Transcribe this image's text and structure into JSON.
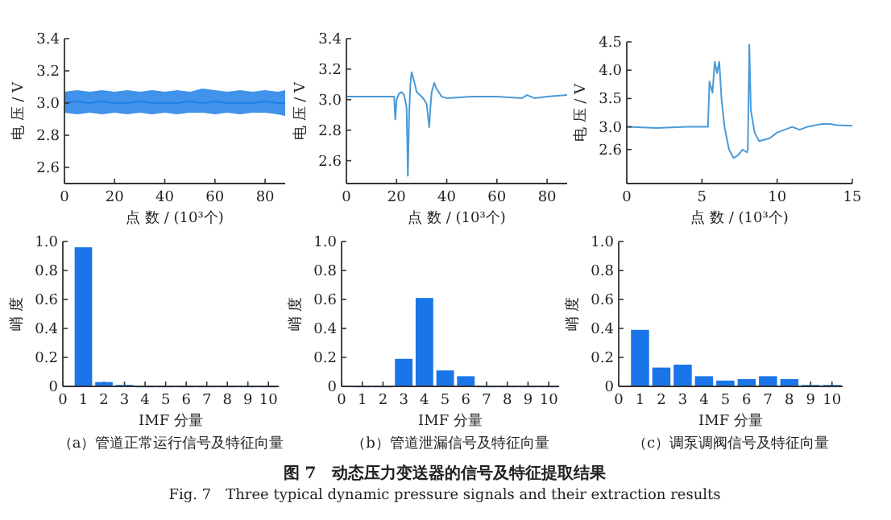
{
  "chart_data": [
    {
      "type": "line",
      "xlabel": "点 数 / (10³个)",
      "ylabel": "电 压 / V",
      "x": [
        0,
        5,
        10,
        15,
        20,
        25,
        30,
        35,
        40,
        45,
        50,
        55,
        60,
        65,
        70,
        75,
        80,
        85,
        88
      ],
      "xlim": [
        0,
        88
      ],
      "xticks": [
        0,
        20,
        40,
        60,
        80
      ],
      "ylim": [
        2.5,
        3.4
      ],
      "yticks": [
        2.6,
        2.8,
        {
          "value": 3,
          "label": "3.0"
        },
        3.2,
        3.4
      ],
      "series": [
        {
          "color": "#1e7fe6",
          "values": [
            3.0,
            3.01,
            3.0,
            3.01,
            3.0,
            3.0,
            3.01,
            3.0,
            3.0,
            3.0,
            3.01,
            3.0,
            3.01,
            3.0,
            3.0,
            3.0,
            3.01,
            3.0,
            3.0
          ],
          "lower": [
            2.94,
            2.93,
            2.94,
            2.93,
            2.94,
            2.93,
            2.94,
            2.93,
            2.94,
            2.93,
            2.94,
            2.94,
            2.93,
            2.94,
            2.93,
            2.94,
            2.94,
            2.93,
            2.92
          ],
          "upper": [
            3.07,
            3.08,
            3.07,
            3.08,
            3.07,
            3.08,
            3.07,
            3.08,
            3.07,
            3.08,
            3.07,
            3.09,
            3.08,
            3.07,
            3.08,
            3.07,
            3.08,
            3.07,
            3.08
          ]
        }
      ]
    },
    {
      "type": "line",
      "xlabel": "点 数 / (10³个)",
      "ylabel": "电 压 / V",
      "x": [
        0,
        10,
        19,
        19.5,
        20,
        21,
        22,
        23,
        24,
        24.5,
        25,
        25.5,
        26,
        27,
        28,
        30,
        31,
        32,
        33,
        33.5,
        34,
        35,
        36,
        38,
        40,
        50,
        60,
        70,
        72,
        75,
        80,
        88
      ],
      "xlim": [
        0,
        88
      ],
      "xticks": [
        0,
        20,
        40,
        60,
        80
      ],
      "ylim": [
        2.45,
        3.4
      ],
      "yticks": [
        2.6,
        2.8,
        {
          "value": 3,
          "label": "3.0"
        },
        3.2,
        3.4
      ],
      "series": [
        {
          "color": "#4a9ad8",
          "values": [
            3.02,
            3.02,
            3.02,
            2.87,
            3.0,
            3.04,
            3.05,
            3.03,
            2.95,
            2.5,
            2.9,
            3.1,
            3.18,
            3.12,
            3.05,
            3.02,
            3.0,
            2.97,
            2.82,
            2.95,
            3.05,
            3.11,
            3.07,
            3.02,
            3.01,
            3.02,
            3.02,
            3.01,
            3.03,
            3.01,
            3.02,
            3.03
          ]
        }
      ]
    },
    {
      "type": "line",
      "xlabel": "点 数 / (10³个)",
      "ylabel": "电 压 / V",
      "x": [
        0,
        2,
        4,
        5.4,
        5.5,
        5.7,
        5.85,
        6.0,
        6.15,
        6.3,
        6.5,
        6.8,
        7.1,
        7.4,
        7.7,
        8.0,
        8.05,
        8.15,
        8.25,
        8.5,
        8.8,
        9.5,
        10,
        11,
        11.5,
        12,
        13,
        13.5,
        14,
        15
      ],
      "xlim": [
        0,
        15
      ],
      "xticks": [
        0,
        5,
        10,
        15
      ],
      "ylim": [
        2.0,
        4.5
      ],
      "yticks": [
        2.6,
        {
          "value": 3,
          "label": "3.0"
        },
        3.5,
        {
          "value": 4,
          "label": "4.0"
        },
        4.5
      ],
      "series": [
        {
          "color": "#4a9ad8",
          "values": [
            3.0,
            2.98,
            3.0,
            3.0,
            3.8,
            3.6,
            4.15,
            3.95,
            4.15,
            3.5,
            3.0,
            2.6,
            2.45,
            2.5,
            2.6,
            2.55,
            2.6,
            4.45,
            3.3,
            2.9,
            2.75,
            2.8,
            2.9,
            3.0,
            2.95,
            3.0,
            3.05,
            3.05,
            3.03,
            3.02
          ]
        }
      ]
    },
    {
      "type": "bar",
      "xlabel": "IMF 分量",
      "ylabel": "峭 度",
      "annotations": [
        "（a）管道正常运行信号及特征向量"
      ],
      "categories": [
        "0",
        "1",
        "2",
        "3",
        "4",
        "5",
        "6",
        "7",
        "8",
        "9",
        "10"
      ],
      "ylim": [
        0,
        1
      ],
      "yticks": [
        0,
        0.2,
        0.4,
        0.6,
        0.8,
        {
          "value": 1,
          "label": "1.0"
        }
      ],
      "series": [
        {
          "color": "#1a75e8",
          "values": [
            null,
            0.96,
            0.03,
            0.01,
            0,
            0,
            0,
            0,
            0,
            0,
            0
          ]
        }
      ]
    },
    {
      "type": "bar",
      "xlabel": "IMF 分量",
      "ylabel": "峭 度",
      "annotations": [
        "（b）管道泄漏信号及特征向量"
      ],
      "categories": [
        "0",
        "1",
        "2",
        "3",
        "4",
        "5",
        "6",
        "7",
        "8",
        "9",
        "10"
      ],
      "ylim": [
        0,
        1
      ],
      "yticks": [
        0,
        0.2,
        0.4,
        0.6,
        0.8,
        {
          "value": 1,
          "label": "1.0"
        }
      ],
      "series": [
        {
          "color": "#1a75e8",
          "values": [
            null,
            0,
            0,
            0.19,
            0.61,
            0.11,
            0.07,
            0,
            0,
            0,
            0
          ]
        }
      ]
    },
    {
      "type": "bar",
      "xlabel": "IMF 分量",
      "ylabel": "峭 度",
      "annotations": [
        "（c）调泵调阀信号及特征向量",
        "图 7　动态压力变送器的信号及特征提取结果",
        "Fig. 7　Three typical dynamic pressure signals and their extraction results"
      ],
      "categories": [
        "0",
        "1",
        "2",
        "3",
        "4",
        "5",
        "6",
        "7",
        "8",
        "9",
        "10"
      ],
      "ylim": [
        0,
        1
      ],
      "yticks": [
        0,
        0.2,
        0.4,
        0.6,
        0.8,
        {
          "value": 1,
          "label": "1.0"
        }
      ],
      "series": [
        {
          "color": "#1a75e8",
          "values": [
            null,
            0.39,
            0.13,
            0.15,
            0.07,
            0.04,
            0.05,
            0.07,
            0.05,
            0.01,
            0.01
          ]
        }
      ]
    }
  ]
}
